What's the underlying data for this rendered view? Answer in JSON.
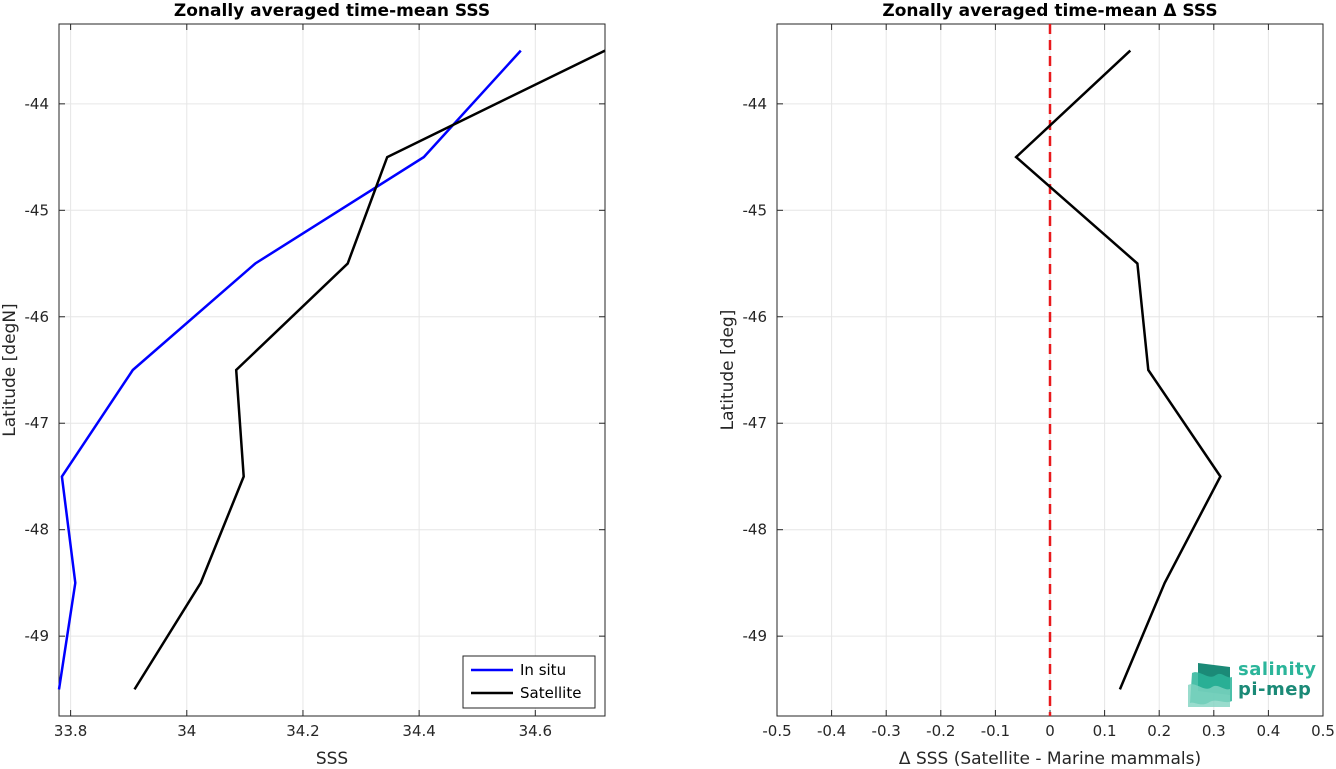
{
  "chart_data": [
    {
      "type": "line",
      "title": "Zonally averaged time-mean SSS",
      "xlabel": "SSS",
      "ylabel": "Latitude [degN]",
      "xlim": [
        33.78,
        34.72
      ],
      "ylim": [
        -49.75,
        -43.25
      ],
      "xticks": [
        33.8,
        34.0,
        34.2,
        34.4,
        34.6
      ],
      "xtick_labels": [
        "33.8",
        "34",
        "34.2",
        "34.4",
        "34.6"
      ],
      "yticks": [
        -49,
        -48,
        -47,
        -46,
        -45,
        -44
      ],
      "ytick_labels": [
        "-49",
        "-48",
        "-47",
        "-46",
        "-45",
        "-44"
      ],
      "grid": true,
      "legend_position": "bottom-right",
      "series": [
        {
          "name": "In situ",
          "color": "#0000ff",
          "points": [
            [
              34.575,
              -43.5
            ],
            [
              34.408,
              -44.5
            ],
            [
              34.118,
              -45.5
            ],
            [
              33.907,
              -46.5
            ],
            [
              33.785,
              -47.5
            ],
            [
              33.808,
              -48.5
            ],
            [
              33.78,
              -49.5
            ]
          ]
        },
        {
          "name": "Satellite",
          "color": "#000000",
          "points": [
            [
              34.72,
              -43.5
            ],
            [
              34.345,
              -44.5
            ],
            [
              34.277,
              -45.5
            ],
            [
              34.085,
              -46.5
            ],
            [
              34.098,
              -47.5
            ],
            [
              34.024,
              -48.5
            ],
            [
              33.91,
              -49.5
            ]
          ]
        }
      ]
    },
    {
      "type": "line",
      "title": "Zonally averaged time-mean Δ SSS",
      "xlabel": "Δ SSS (Satellite - Marine mammals)",
      "ylabel": "Latitude [deg]",
      "xlim": [
        -0.5,
        0.5
      ],
      "ylim": [
        -49.75,
        -43.25
      ],
      "xticks": [
        -0.5,
        -0.4,
        -0.3,
        -0.2,
        -0.1,
        0,
        0.1,
        0.2,
        0.3,
        0.4,
        0.5
      ],
      "xtick_labels": [
        "-0.5",
        "-0.4",
        "-0.3",
        "-0.2",
        "-0.1",
        "0",
        "0.1",
        "0.2",
        "0.3",
        "0.4",
        "0.5"
      ],
      "yticks": [
        -49,
        -48,
        -47,
        -46,
        -45,
        -44
      ],
      "ytick_labels": [
        "-49",
        "-48",
        "-47",
        "-46",
        "-45",
        "-44"
      ],
      "grid": true,
      "reference_line": {
        "x": 0,
        "color": "#e8191c",
        "style": "dashed"
      },
      "series": [
        {
          "color": "#000000",
          "points": [
            [
              0.147,
              -43.5
            ],
            [
              -0.062,
              -44.5
            ],
            [
              0.16,
              -45.5
            ],
            [
              0.18,
              -46.5
            ],
            [
              0.312,
              -47.5
            ],
            [
              0.21,
              -48.5
            ],
            [
              0.128,
              -49.5
            ]
          ]
        }
      ]
    }
  ],
  "logo": {
    "line1": "salinity",
    "line2": "pi-mep",
    "colors": [
      "#2bb59a",
      "#1b8a77",
      "#7fd3c0"
    ]
  }
}
